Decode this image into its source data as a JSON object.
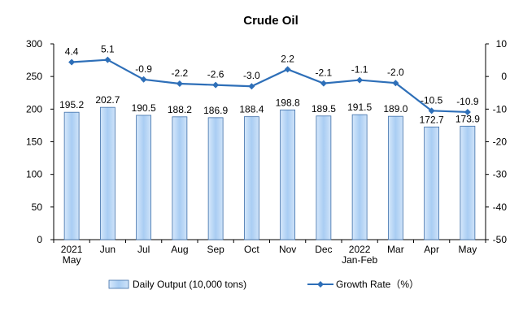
{
  "chart_data": {
    "type": "bar",
    "title": "Crude Oil",
    "categories": [
      [
        "2021",
        "May"
      ],
      [
        "Jun"
      ],
      [
        "Jul"
      ],
      [
        "Aug"
      ],
      [
        "Sep"
      ],
      [
        "Oct"
      ],
      [
        "Nov"
      ],
      [
        "Dec"
      ],
      [
        "2022",
        "Jan-Feb"
      ],
      [
        "Mar"
      ],
      [
        "Apr"
      ],
      [
        "May"
      ]
    ],
    "series": [
      {
        "name": "Daily Output (10,000 tons)",
        "type": "bar",
        "axis": "left",
        "values": [
          195.2,
          202.7,
          190.5,
          188.2,
          186.9,
          188.4,
          198.8,
          189.5,
          191.5,
          189.0,
          172.7,
          173.9
        ],
        "labels": [
          "195.2",
          "202.7",
          "190.5",
          "188.2",
          "186.9",
          "188.4",
          "198.8",
          "189.5",
          "191.5",
          "189.0",
          "172.7",
          "173.9"
        ]
      },
      {
        "name": "Growth Rate（%）",
        "type": "line",
        "axis": "right",
        "values": [
          4.4,
          5.1,
          -0.9,
          -2.2,
          -2.6,
          -3.0,
          2.2,
          -2.1,
          -1.1,
          -2.0,
          -10.5,
          -10.9
        ],
        "labels": [
          "4.4",
          "5.1",
          "-0.9",
          "-2.2",
          "-2.6",
          "-3.0",
          "2.2",
          "-2.1",
          "-1.1",
          "-2.0",
          "-10.5",
          "-10.9"
        ]
      }
    ],
    "y_left": {
      "min": 0,
      "max": 300,
      "ticks": [
        "0",
        "50",
        "100",
        "150",
        "200",
        "250",
        "300"
      ]
    },
    "y_right": {
      "min": -50,
      "max": 10,
      "ticks": [
        "-50",
        "-40",
        "-30",
        "-20",
        "-10",
        "0",
        "10"
      ]
    },
    "grid": false,
    "legend_position": "bottom",
    "colors": {
      "bar_fill": "#a9cdf3",
      "bar_fill_light": "#d6e8fb",
      "bar_stroke": "#3d6ea8",
      "line": "#2e6fb8",
      "axis": "#000000"
    }
  }
}
